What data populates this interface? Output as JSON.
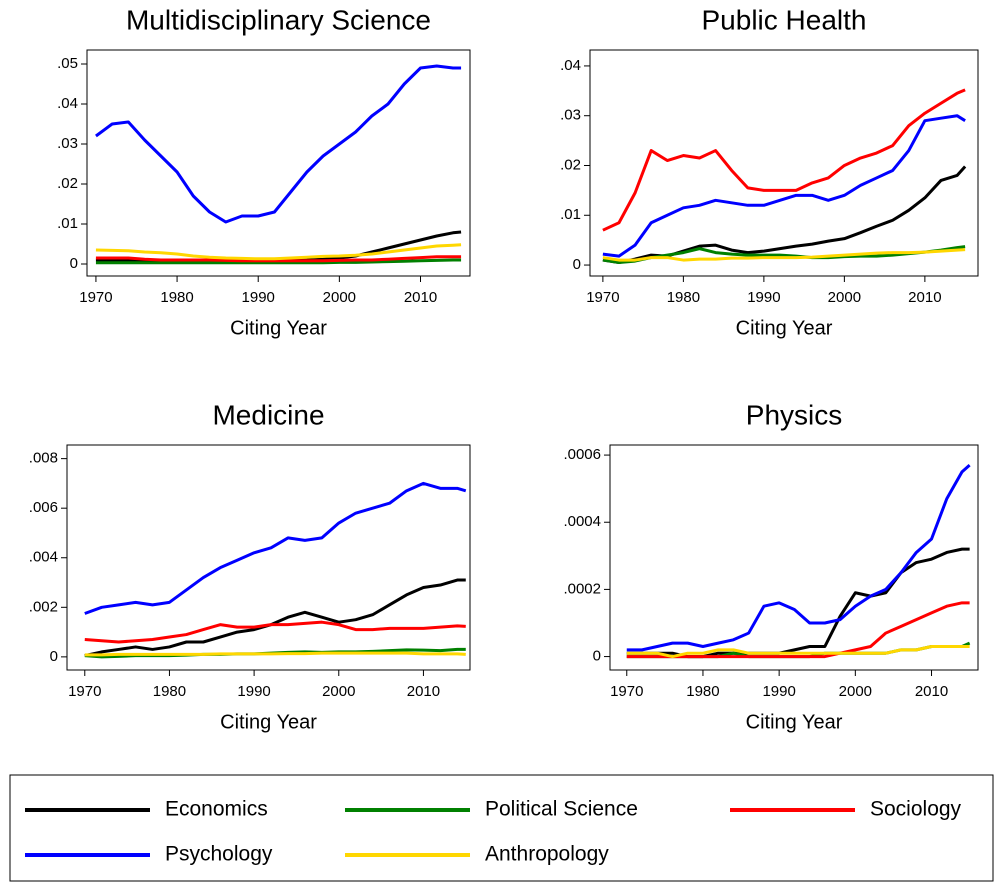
{
  "chart_data": [
    {
      "type": "line",
      "title": "Multidisciplinary Science",
      "xlabel": "Citing Year",
      "x": [
        1970,
        1972,
        1974,
        1976,
        1978,
        1980,
        1982,
        1984,
        1986,
        1988,
        1990,
        1992,
        1994,
        1996,
        1998,
        2000,
        2002,
        2004,
        2006,
        2008,
        2010,
        2012,
        2014,
        2015
      ],
      "xlim": [
        1968.9,
        2016.1
      ],
      "xticks": [
        1970,
        1980,
        1990,
        2000,
        2010
      ],
      "ylim": [
        -0.003,
        0.0535
      ],
      "yticks": [
        0,
        {
          "value": 0.01,
          "label": ".01"
        },
        {
          "value": 0.02,
          "label": ".02"
        },
        {
          "value": 0.03,
          "label": ".03"
        },
        {
          "value": 0.04,
          "label": ".04"
        },
        {
          "value": 0.05,
          "label": ".05"
        }
      ],
      "series": [
        {
          "name": "Economics",
          "color": "#000000",
          "values": [
            0.001,
            0.001,
            0.001,
            0.001,
            0.0008,
            0.0008,
            0.0008,
            0.0008,
            0.0008,
            0.0008,
            0.0008,
            0.0008,
            0.0009,
            0.001,
            0.0012,
            0.0015,
            0.002,
            0.003,
            0.004,
            0.005,
            0.006,
            0.007,
            0.0078,
            0.008
          ]
        },
        {
          "name": "Political Science",
          "color": "#008000",
          "values": [
            0.0003,
            0.0003,
            0.0003,
            0.0003,
            0.0003,
            0.0003,
            0.0003,
            0.0003,
            0.0003,
            0.0003,
            0.0003,
            0.0003,
            0.0003,
            0.0003,
            0.0003,
            0.0004,
            0.0004,
            0.0005,
            0.0006,
            0.0007,
            0.0008,
            0.0009,
            0.001,
            0.001
          ]
        },
        {
          "name": "Sociology",
          "color": "#ff0000",
          "values": [
            0.0015,
            0.0015,
            0.0015,
            0.0012,
            0.001,
            0.001,
            0.001,
            0.001,
            0.0009,
            0.0008,
            0.0008,
            0.0008,
            0.0008,
            0.0008,
            0.0008,
            0.0009,
            0.001,
            0.001,
            0.0012,
            0.0014,
            0.0016,
            0.0018,
            0.0018,
            0.0018
          ]
        },
        {
          "name": "Psychology",
          "color": "#0000ff",
          "values": [
            0.032,
            0.035,
            0.0355,
            0.031,
            0.027,
            0.023,
            0.017,
            0.013,
            0.0105,
            0.012,
            0.012,
            0.013,
            0.018,
            0.023,
            0.027,
            0.03,
            0.033,
            0.037,
            0.04,
            0.045,
            0.049,
            0.0495,
            0.049,
            0.049
          ]
        },
        {
          "name": "Anthropology",
          "color": "#ffd700",
          "values": [
            0.0035,
            0.0034,
            0.0033,
            0.003,
            0.0028,
            0.0025,
            0.002,
            0.0017,
            0.0015,
            0.0014,
            0.0013,
            0.0013,
            0.0015,
            0.0017,
            0.0019,
            0.002,
            0.0022,
            0.0025,
            0.003,
            0.0035,
            0.004,
            0.0045,
            0.0047,
            0.0048
          ]
        }
      ]
    },
    {
      "type": "line",
      "title": "Public Health",
      "xlabel": "Citing Year",
      "x": [
        1970,
        1972,
        1974,
        1976,
        1978,
        1980,
        1982,
        1984,
        1986,
        1988,
        1990,
        1992,
        1994,
        1996,
        1998,
        2000,
        2002,
        2004,
        2006,
        2008,
        2010,
        2012,
        2014,
        2015
      ],
      "xlim": [
        1968.4,
        2016.6
      ],
      "xticks": [
        1970,
        1980,
        1990,
        2000,
        2010
      ],
      "ylim": [
        -0.0022,
        0.0432
      ],
      "yticks": [
        0,
        {
          "value": 0.01,
          "label": ".01"
        },
        {
          "value": 0.02,
          "label": ".02"
        },
        {
          "value": 0.03,
          "label": ".03"
        },
        {
          "value": 0.04,
          "label": ".04"
        }
      ],
      "series": [
        {
          "name": "Economics",
          "color": "#000000",
          "values": [
            0.001,
            0.0005,
            0.0012,
            0.002,
            0.0018,
            0.0028,
            0.0038,
            0.004,
            0.003,
            0.0025,
            0.0028,
            0.0033,
            0.0038,
            0.0042,
            0.0048,
            0.0053,
            0.0065,
            0.0078,
            0.009,
            0.011,
            0.0135,
            0.017,
            0.018,
            0.0198
          ]
        },
        {
          "name": "Political Science",
          "color": "#008000",
          "values": [
            0.001,
            0.0005,
            0.0008,
            0.0015,
            0.002,
            0.0025,
            0.0033,
            0.0025,
            0.0022,
            0.002,
            0.002,
            0.002,
            0.0018,
            0.0015,
            0.0015,
            0.0017,
            0.0018,
            0.0018,
            0.002,
            0.0023,
            0.0026,
            0.003,
            0.0035,
            0.0037
          ]
        },
        {
          "name": "Sociology",
          "color": "#ff0000",
          "values": [
            0.007,
            0.0085,
            0.0145,
            0.023,
            0.021,
            0.022,
            0.0215,
            0.023,
            0.019,
            0.0155,
            0.015,
            0.015,
            0.015,
            0.0165,
            0.0175,
            0.02,
            0.0215,
            0.0225,
            0.024,
            0.028,
            0.0305,
            0.0325,
            0.0345,
            0.0352
          ]
        },
        {
          "name": "Psychology",
          "color": "#0000ff",
          "values": [
            0.0022,
            0.0018,
            0.004,
            0.0085,
            0.01,
            0.0115,
            0.012,
            0.013,
            0.0125,
            0.012,
            0.012,
            0.013,
            0.014,
            0.014,
            0.013,
            0.014,
            0.016,
            0.0175,
            0.019,
            0.023,
            0.029,
            0.0295,
            0.03,
            0.029
          ]
        },
        {
          "name": "Anthropology",
          "color": "#ffd700",
          "values": [
            0.0015,
            0.001,
            0.001,
            0.0015,
            0.0015,
            0.001,
            0.0012,
            0.0012,
            0.0014,
            0.0014,
            0.0015,
            0.0015,
            0.0015,
            0.0016,
            0.0018,
            0.002,
            0.0022,
            0.0024,
            0.0025,
            0.0025,
            0.0026,
            0.0028,
            0.003,
            0.0031
          ]
        }
      ]
    },
    {
      "type": "line",
      "title": "Medicine",
      "xlabel": "Citing Year",
      "x": [
        1970,
        1972,
        1974,
        1976,
        1978,
        1980,
        1982,
        1984,
        1986,
        1988,
        1990,
        1992,
        1994,
        1996,
        1998,
        2000,
        2002,
        2004,
        2006,
        2008,
        2010,
        2012,
        2014,
        2015
      ],
      "xlim": [
        1967.9,
        2015.5
      ],
      "xticks": [
        1970,
        1980,
        1990,
        2000,
        2010
      ],
      "ylim": [
        -0.00053,
        0.00855
      ],
      "yticks": [
        0,
        {
          "value": 0.002,
          "label": ".002"
        },
        {
          "value": 0.004,
          "label": ".004"
        },
        {
          "value": 0.006,
          "label": ".006"
        },
        {
          "value": 0.008,
          "label": ".008"
        }
      ],
      "series": [
        {
          "name": "Economics",
          "color": "#000000",
          "values": [
            5e-05,
            0.0002,
            0.0003,
            0.0004,
            0.0003,
            0.0004,
            0.0006,
            0.0006,
            0.0008,
            0.001,
            0.0011,
            0.0013,
            0.0016,
            0.0018,
            0.0016,
            0.0014,
            0.0015,
            0.0017,
            0.0021,
            0.0025,
            0.0028,
            0.0029,
            0.0031,
            0.0031
          ]
        },
        {
          "name": "Political Science",
          "color": "#008000",
          "values": [
            5e-05,
            0,
            2e-05,
            5e-05,
            5e-05,
            5e-05,
            7e-05,
            0.0001,
            0.0001,
            0.00012,
            0.00012,
            0.00015,
            0.00018,
            0.0002,
            0.00018,
            0.0002,
            0.0002,
            0.00022,
            0.00025,
            0.00028,
            0.00027,
            0.00025,
            0.0003,
            0.0003
          ]
        },
        {
          "name": "Sociology",
          "color": "#ff0000",
          "values": [
            0.0007,
            0.00065,
            0.0006,
            0.00065,
            0.0007,
            0.0008,
            0.0009,
            0.0011,
            0.0013,
            0.0012,
            0.0012,
            0.0013,
            0.0013,
            0.00135,
            0.0014,
            0.0013,
            0.0011,
            0.0011,
            0.00115,
            0.00115,
            0.00115,
            0.0012,
            0.00125,
            0.00123
          ]
        },
        {
          "name": "Psychology",
          "color": "#0000ff",
          "values": [
            0.00175,
            0.002,
            0.0021,
            0.0022,
            0.0021,
            0.0022,
            0.0027,
            0.0032,
            0.0036,
            0.0039,
            0.0042,
            0.0044,
            0.0048,
            0.0047,
            0.0048,
            0.0054,
            0.0058,
            0.006,
            0.0062,
            0.0067,
            0.007,
            0.0068,
            0.0068,
            0.0067
          ]
        },
        {
          "name": "Anthropology",
          "color": "#ffd700",
          "values": [
            8e-05,
            8e-05,
            0.0001,
            0.0001,
            0.0001,
            0.0001,
            0.0001,
            0.0001,
            0.00012,
            0.00012,
            0.00012,
            0.00012,
            0.00013,
            0.00013,
            0.00015,
            0.00015,
            0.00015,
            0.00015,
            0.00015,
            0.00015,
            0.00012,
            0.00012,
            0.00012,
            0.0001
          ]
        }
      ]
    },
    {
      "type": "line",
      "title": "Physics",
      "xlabel": "Citing Year",
      "x": [
        1970,
        1972,
        1974,
        1976,
        1978,
        1980,
        1982,
        1984,
        1986,
        1988,
        1990,
        1992,
        1994,
        1996,
        1998,
        2000,
        2002,
        2004,
        2006,
        2008,
        2010,
        2012,
        2014,
        2015
      ],
      "xlim": [
        1967.8,
        2016.1
      ],
      "xticks": [
        1970,
        1980,
        1990,
        2000,
        2010
      ],
      "ylim": [
        -4e-05,
        0.00063
      ],
      "yticks": [
        0,
        {
          "value": 0.0002,
          "label": ".0002"
        },
        {
          "value": 0.0004,
          "label": ".0004"
        },
        {
          "value": 0.0006,
          "label": ".0006"
        }
      ],
      "series": [
        {
          "name": "Economics",
          "color": "#000000",
          "values": [
            1e-05,
            1e-05,
            1e-05,
            1e-05,
            0,
            0,
            1e-05,
            1e-05,
            1e-05,
            1e-05,
            1e-05,
            2e-05,
            3e-05,
            3e-05,
            0.00012,
            0.00019,
            0.00018,
            0.00019,
            0.00025,
            0.00028,
            0.00029,
            0.00031,
            0.00032,
            0.00032
          ]
        },
        {
          "name": "Political Science",
          "color": "#008000",
          "values": [
            0,
            0,
            0,
            0,
            0,
            0,
            0,
            1e-05,
            0,
            0,
            0,
            0,
            0,
            1e-05,
            1e-05,
            1e-05,
            1e-05,
            1e-05,
            2e-05,
            2e-05,
            3e-05,
            3e-05,
            3e-05,
            4e-05
          ]
        },
        {
          "name": "Sociology",
          "color": "#ff0000",
          "values": [
            0,
            0,
            0,
            0,
            0,
            0,
            0,
            0,
            0,
            0,
            0,
            0,
            0,
            0,
            1e-05,
            2e-05,
            3e-05,
            7e-05,
            9e-05,
            0.00011,
            0.00013,
            0.00015,
            0.00016,
            0.00016
          ]
        },
        {
          "name": "Psychology",
          "color": "#0000ff",
          "values": [
            2e-05,
            2e-05,
            3e-05,
            4e-05,
            4e-05,
            3e-05,
            4e-05,
            5e-05,
            7e-05,
            0.00015,
            0.00016,
            0.00014,
            0.0001,
            0.0001,
            0.00011,
            0.00015,
            0.00018,
            0.0002,
            0.00025,
            0.00031,
            0.00035,
            0.00047,
            0.00055,
            0.00057
          ]
        },
        {
          "name": "Anthropology",
          "color": "#ffd700",
          "values": [
            1e-05,
            1e-05,
            1e-05,
            0,
            1e-05,
            1e-05,
            2e-05,
            2e-05,
            1e-05,
            1e-05,
            1e-05,
            1e-05,
            1e-05,
            1e-05,
            1e-05,
            1e-05,
            1e-05,
            1e-05,
            2e-05,
            2e-05,
            3e-05,
            3e-05,
            3e-05,
            3e-05
          ]
        }
      ]
    }
  ]
}
